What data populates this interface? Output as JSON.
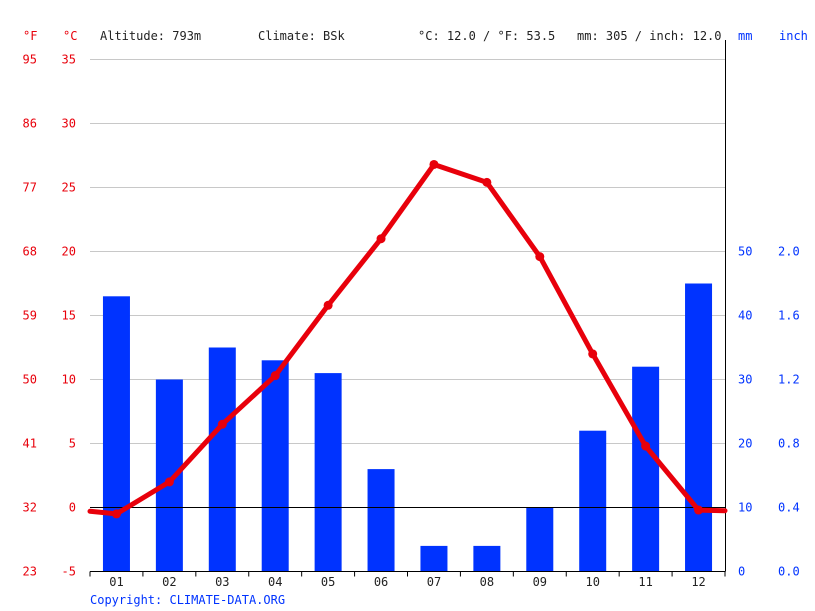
{
  "header": {
    "unit_f": "°F",
    "unit_c": "°C",
    "altitude": "Altitude: 793m",
    "climate": "Climate: BSk",
    "temp_avg": "°C: 12.0 / °F: 53.5",
    "precip_total": "mm: 305 / inch: 12.0",
    "unit_mm": "mm",
    "unit_inch": "inch"
  },
  "copyright": "Copyright: CLIMATE-DATA.ORG",
  "colors": {
    "temperature": "#e8000b",
    "precipitation": "#0033ff",
    "grid": "#c8c8c8"
  },
  "chart_data": {
    "type": "bar",
    "categories": [
      "01",
      "02",
      "03",
      "04",
      "05",
      "06",
      "07",
      "08",
      "09",
      "10",
      "11",
      "12"
    ],
    "series": [
      {
        "type": "bar",
        "axis": "right",
        "values": [
          43,
          30,
          35,
          33,
          31,
          16,
          4,
          4,
          10,
          22,
          32,
          45
        ]
      },
      {
        "type": "line",
        "axis": "left",
        "values": [
          -0.5,
          2.0,
          6.5,
          10.3,
          15.8,
          21.0,
          26.8,
          25.4,
          19.6,
          12.0,
          4.8,
          -0.2
        ]
      }
    ],
    "left_axis": {
      "celsius_ticks": [
        "-5",
        "0",
        "5",
        "10",
        "15",
        "20",
        "25",
        "30",
        "35"
      ],
      "fahrenheit_ticks": [
        "23",
        "32",
        "41",
        "50",
        "59",
        "68",
        "77",
        "86",
        "95"
      ],
      "ylim": [
        -5,
        35
      ]
    },
    "right_axis": {
      "mm_ticks": [
        "0",
        "10",
        "20",
        "30",
        "40",
        "50"
      ],
      "inch_ticks": [
        "0.0",
        "0.4",
        "0.8",
        "1.2",
        "1.6",
        "2.0"
      ],
      "ylim": [
        0,
        80
      ]
    },
    "grid": true,
    "legend": "none"
  }
}
